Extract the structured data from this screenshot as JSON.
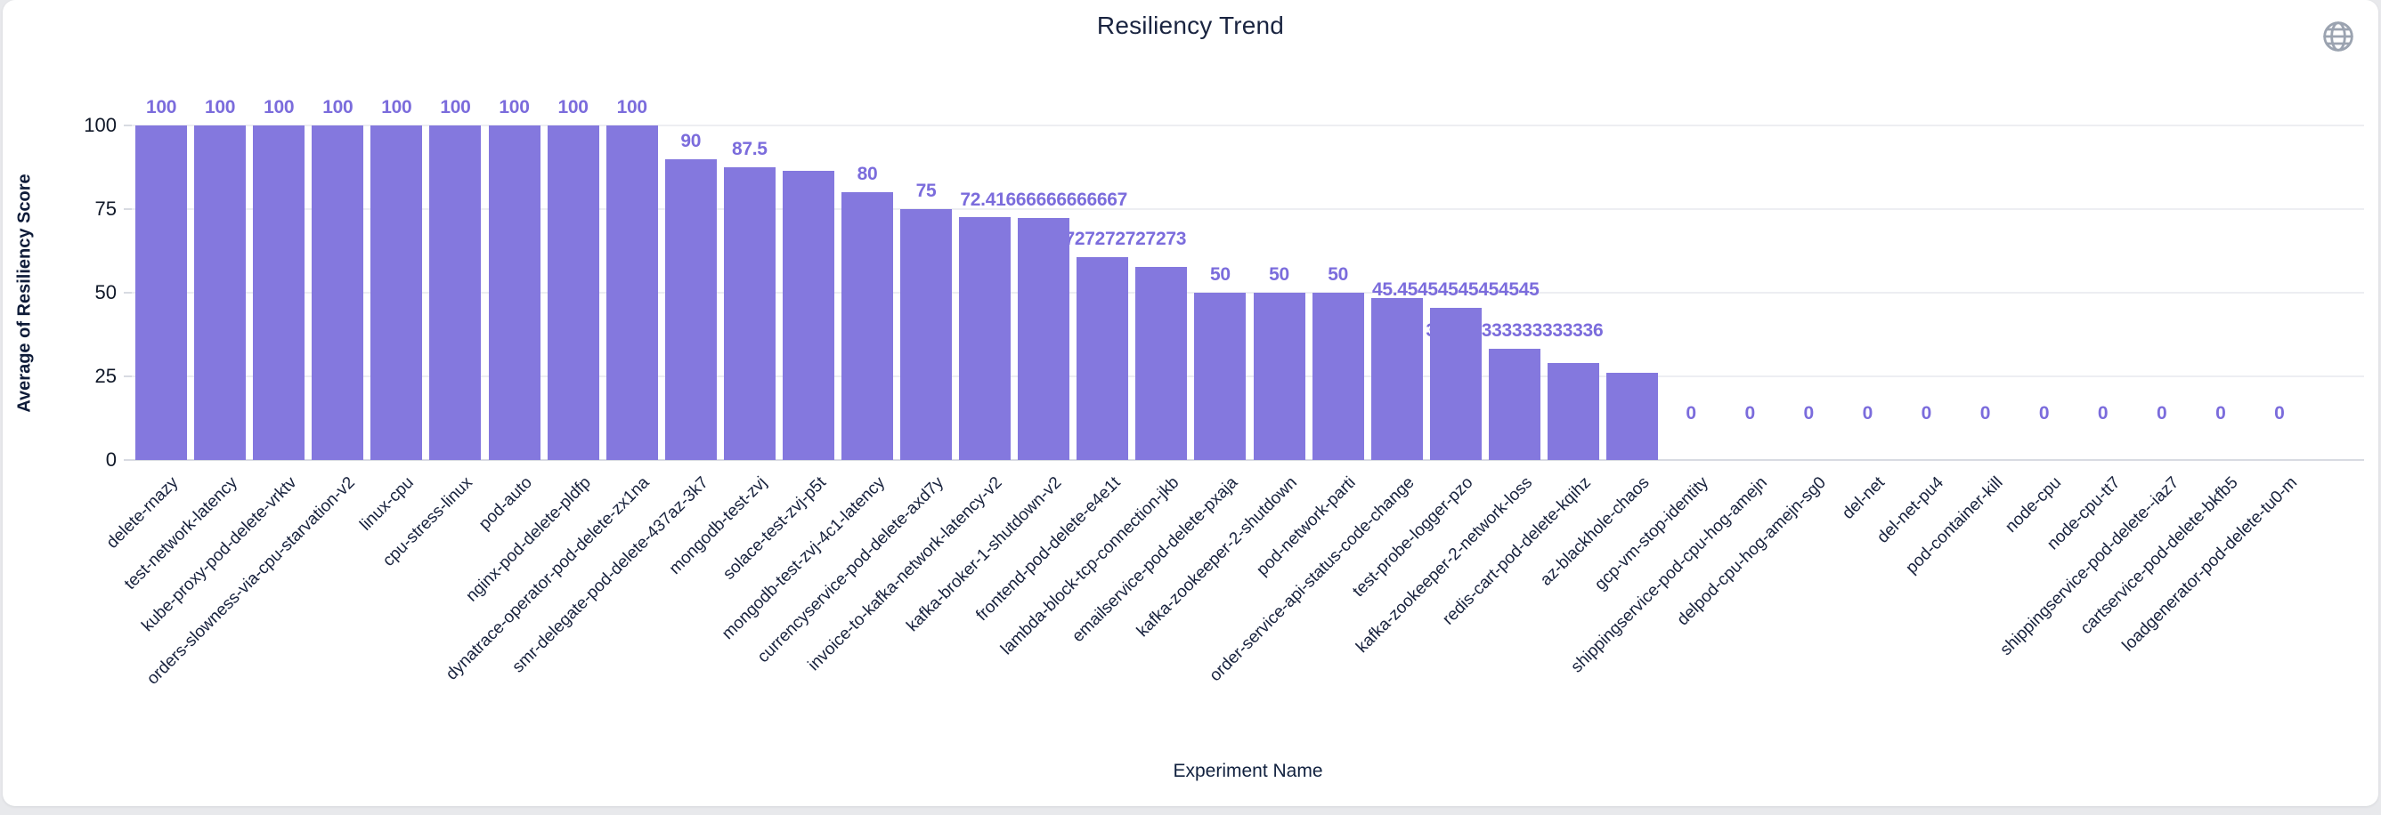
{
  "title": "Resiliency Trend",
  "header": {
    "icon": "globe-icon"
  },
  "y_axis": {
    "title": "Average of Resiliency Score",
    "ticks": [
      "100",
      "75",
      "50",
      "25",
      "0"
    ]
  },
  "x_axis": {
    "title": "Experiment Name"
  },
  "colors": {
    "bar": "#8478de",
    "bar_label": "#7b6cdc",
    "title_text": "#1a2440",
    "axis_text": "#101828",
    "grid": "#edeef2",
    "icon": "#9ba3b0",
    "card_bg": "#ffffff",
    "page_bg": "#e8e9ec"
  },
  "chart_data": {
    "type": "bar",
    "title": "Resiliency Trend",
    "xlabel": "Experiment Name",
    "ylabel": "Average of Resiliency Score",
    "ylim": [
      0,
      100
    ],
    "grid": true,
    "legend": false,
    "bars": [
      {
        "name": "delete-rnazy",
        "value": 100,
        "label": "100"
      },
      {
        "name": "test-network-latency",
        "value": 100,
        "label": "100"
      },
      {
        "name": "kube-proxy-pod-delete-vrktv",
        "value": 100,
        "label": "100"
      },
      {
        "name": "orders-slowness-via-cpu-starvation-v2",
        "value": 100,
        "label": "100"
      },
      {
        "name": "linux-cpu",
        "value": 100,
        "label": "100"
      },
      {
        "name": "cpu-stress-linux",
        "value": 100,
        "label": "100"
      },
      {
        "name": "pod-auto",
        "value": 100,
        "label": "100"
      },
      {
        "name": "nginx-pod-delete-pldfp",
        "value": 100,
        "label": "100"
      },
      {
        "name": "dynatrace-operator-pod-delete-zx1na",
        "value": 100,
        "label": "100"
      },
      {
        "name": "smr-delegate-pod-delete-437az-3k7",
        "value": 90,
        "label": "90"
      },
      {
        "name": "mongodb-test-zvj",
        "value": 87.5,
        "label": "87.5"
      },
      {
        "name": "solace-test-zvj-p5t",
        "value": 86.4,
        "label": null
      },
      {
        "name": "mongodb-test-zvj-4c1-latency",
        "value": 80,
        "label": "80"
      },
      {
        "name": "currencyservice-pod-delete-axd7y",
        "value": 75,
        "label": "75"
      },
      {
        "name": "invoice-to-kafka-network-latency-v2",
        "value": 72.7,
        "label": null
      },
      {
        "name": "kafka-broker-1-shutdown-v2",
        "value": 72.41666666666667,
        "label": "72.41666666666667"
      },
      {
        "name": "frontend-pod-delete-e4e1t",
        "value": 60.72727272727273,
        "label": "60.72727272727273"
      },
      {
        "name": "lambda-block-tcp-connection-jkb",
        "value": 57.7,
        "label": null
      },
      {
        "name": "emailservice-pod-delete-pxaja",
        "value": 50,
        "label": "50"
      },
      {
        "name": "kafka-zookeeper-2-shutdown",
        "value": 50,
        "label": "50"
      },
      {
        "name": "pod-network-parti",
        "value": 50,
        "label": "50"
      },
      {
        "name": "order-service-api-status-code-change",
        "value": 48.4,
        "label": null
      },
      {
        "name": "test-probe-logger-pzo",
        "value": 45.45454545454545,
        "label": "45.45454545454545"
      },
      {
        "name": "kafka-zookeeper-2-network-loss",
        "value": 33.333333333333336,
        "label": "33.333333333333336"
      },
      {
        "name": "redis-cart-pod-delete-kqihz",
        "value": 29,
        "label": null
      },
      {
        "name": "az-blackhole-chaos",
        "value": 26,
        "label": null
      },
      {
        "name": "gcp-vm-stop-identity",
        "value": 0,
        "label": "0"
      },
      {
        "name": "shippingservice-pod-cpu-hog-amejn",
        "value": 0,
        "label": "0"
      },
      {
        "name": "delpod-cpu-hog-amejn-sg0",
        "value": 0,
        "label": "0"
      },
      {
        "name": "del-net",
        "value": 0,
        "label": "0"
      },
      {
        "name": "del-net-pu4",
        "value": 0,
        "label": "0"
      },
      {
        "name": "pod-container-kill",
        "value": 0,
        "label": "0"
      },
      {
        "name": "node-cpu",
        "value": 0,
        "label": "0"
      },
      {
        "name": "node-cpu-tt7",
        "value": 0,
        "label": "0"
      },
      {
        "name": "shippingservice-pod-delete--iaz7",
        "value": 0,
        "label": "0"
      },
      {
        "name": "cartservice-pod-delete-bkfb5",
        "value": 0,
        "label": "0"
      },
      {
        "name": "loadgenerator-pod-delete-tu0-m",
        "value": 0,
        "label": "0"
      }
    ]
  }
}
